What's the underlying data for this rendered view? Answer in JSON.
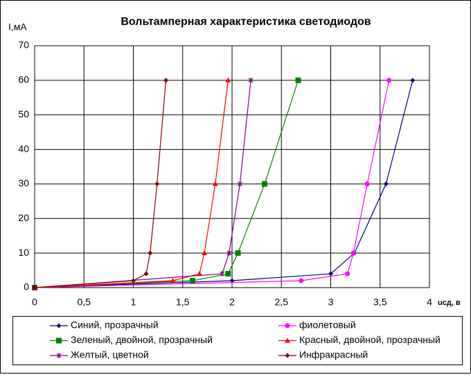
{
  "chart_data": {
    "type": "scatter",
    "title": "Вольтамперная характеристика светодиодов",
    "y_label": "I,мА",
    "x_label": "uсд, в",
    "xlim": [
      0,
      4
    ],
    "ylim": [
      0,
      70
    ],
    "xticks": [
      0,
      {
        "value": 0.5,
        "label": "0,5"
      },
      1,
      {
        "value": 1.5,
        "label": "1,5"
      },
      2,
      {
        "value": 2.5,
        "label": "2,5"
      },
      3,
      {
        "value": 3.5,
        "label": "3,5"
      },
      4
    ],
    "yticks": [
      0,
      10,
      20,
      30,
      40,
      50,
      60,
      70
    ],
    "grid": true,
    "legend": "bottom",
    "series": [
      {
        "name": "Синий, прозрачный",
        "color": "#000080",
        "marker": "diamond",
        "x": [
          0,
          2.0,
          3.0,
          3.24,
          3.56,
          3.83
        ],
        "values": [
          0,
          2,
          4,
          10,
          30,
          60
        ]
      },
      {
        "name": "фиолетовый",
        "color": "#ff00ff",
        "marker": "circle",
        "x": [
          0,
          2.7,
          3.17,
          3.23,
          3.37,
          3.59
        ],
        "values": [
          0,
          2,
          4,
          10,
          30,
          60
        ]
      },
      {
        "name": "Зеленый, двойной, прозрачный",
        "color": "#008000",
        "marker": "square",
        "x": [
          0,
          1.6,
          1.96,
          2.06,
          2.33,
          2.67
        ],
        "values": [
          0,
          2,
          4,
          10,
          30,
          60
        ]
      },
      {
        "name": "Красный, двойной, прозрачный",
        "color": "#ff0000",
        "marker": "triangle",
        "x": [
          0,
          1.4,
          1.67,
          1.72,
          1.83,
          1.96
        ],
        "values": [
          0,
          2,
          4,
          10,
          30,
          60
        ]
      },
      {
        "name": "Желтый, цветной",
        "color": "#800080",
        "marker": "cross",
        "x": [
          0,
          1.9,
          1.97,
          2.08,
          2.19
        ],
        "values": [
          0,
          4,
          10,
          30,
          60
        ]
      },
      {
        "name": "Инфракрасный",
        "color": "#800000",
        "marker": "diamond",
        "x": [
          0,
          1.0,
          1.13,
          1.17,
          1.24,
          1.33
        ],
        "values": [
          0,
          2,
          4,
          10,
          30,
          60
        ]
      }
    ]
  }
}
